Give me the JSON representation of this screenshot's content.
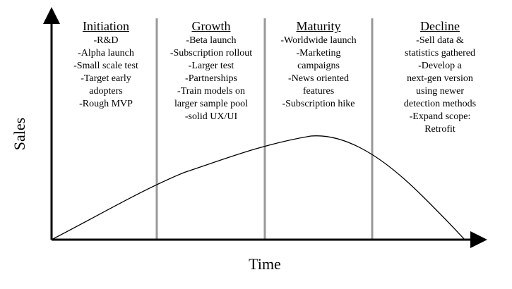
{
  "axes": {
    "x_label": "Time",
    "y_label": "Sales"
  },
  "stages": [
    {
      "title": "Initiation",
      "items": [
        "-R&D",
        "-Alpha launch",
        "-Small scale test",
        "-Target early",
        "adopters",
        "-Rough MVP"
      ]
    },
    {
      "title": "Growth",
      "items": [
        "-Beta launch",
        "-Subscription rollout",
        "-Larger test",
        "-Partnerships",
        "-Train models on",
        "larger sample pool",
        "-solid UX/UI"
      ]
    },
    {
      "title": "Maturity",
      "items": [
        "-Worldwide launch",
        "-Marketing",
        "campaigns",
        "-News oriented",
        "features",
        "-Subscription hike"
      ]
    },
    {
      "title": "Decline",
      "items": [
        "-Sell data &",
        "statistics gathered",
        "-Develop a",
        "next-gen version",
        "using newer",
        "detection methods",
        "-Expand scope:",
        "Retrofit"
      ]
    }
  ],
  "colors": {
    "divider": "#999999",
    "axis": "#000000",
    "curve": "#000000"
  }
}
